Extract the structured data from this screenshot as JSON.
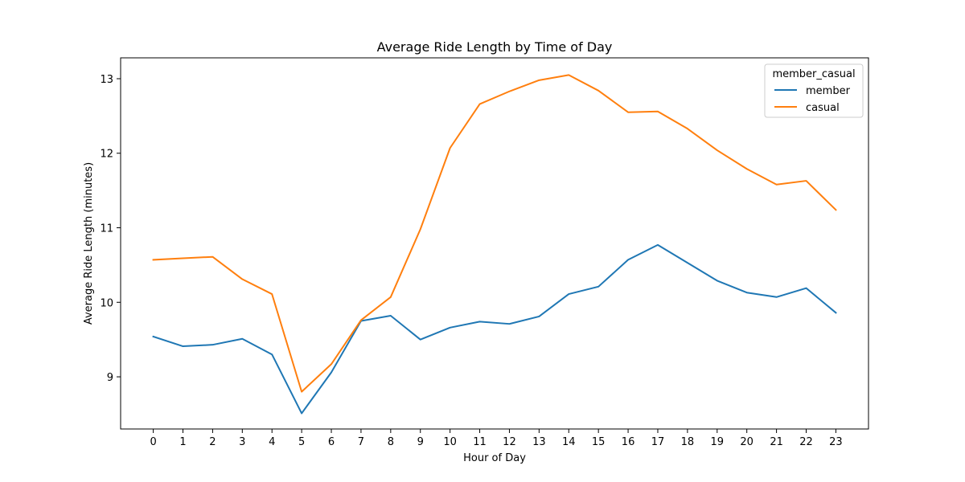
{
  "chart_data": {
    "type": "line",
    "title": "Average Ride Length by Time of Day",
    "xlabel": "Hour of Day",
    "ylabel": "Average Ride Length (minutes)",
    "x": [
      0,
      1,
      2,
      3,
      4,
      5,
      6,
      7,
      8,
      9,
      10,
      11,
      12,
      13,
      14,
      15,
      16,
      17,
      18,
      19,
      20,
      21,
      22,
      23
    ],
    "x_tick_labels": [
      "0",
      "1",
      "2",
      "3",
      "4",
      "5",
      "6",
      "7",
      "8",
      "9",
      "10",
      "11",
      "12",
      "13",
      "14",
      "15",
      "16",
      "17",
      "18",
      "19",
      "20",
      "21",
      "22",
      "23"
    ],
    "xlim": [
      -1.1,
      24.1
    ],
    "ylim": [
      8.3,
      13.28
    ],
    "y_ticks": [
      9,
      10,
      11,
      12,
      13
    ],
    "y_tick_labels": [
      "9",
      "10",
      "11",
      "12",
      "13"
    ],
    "grid": false,
    "legend": {
      "title": "member_casual",
      "placement": "top-right"
    },
    "series": [
      {
        "name": "member",
        "color": "#1f77b4",
        "values": [
          9.54,
          9.41,
          9.43,
          9.51,
          9.3,
          8.51,
          9.06,
          9.75,
          9.82,
          9.5,
          9.66,
          9.74,
          9.71,
          9.81,
          10.11,
          10.21,
          10.57,
          10.77,
          10.53,
          10.29,
          10.13,
          10.07,
          10.19,
          9.86
        ]
      },
      {
        "name": "casual",
        "color": "#ff7f0e",
        "values": [
          10.57,
          10.59,
          10.61,
          10.31,
          10.11,
          8.8,
          9.17,
          9.76,
          10.07,
          10.98,
          12.07,
          12.66,
          12.83,
          12.98,
          13.05,
          12.84,
          12.55,
          12.56,
          12.33,
          12.04,
          11.79,
          11.58,
          11.63,
          11.24
        ]
      }
    ]
  }
}
